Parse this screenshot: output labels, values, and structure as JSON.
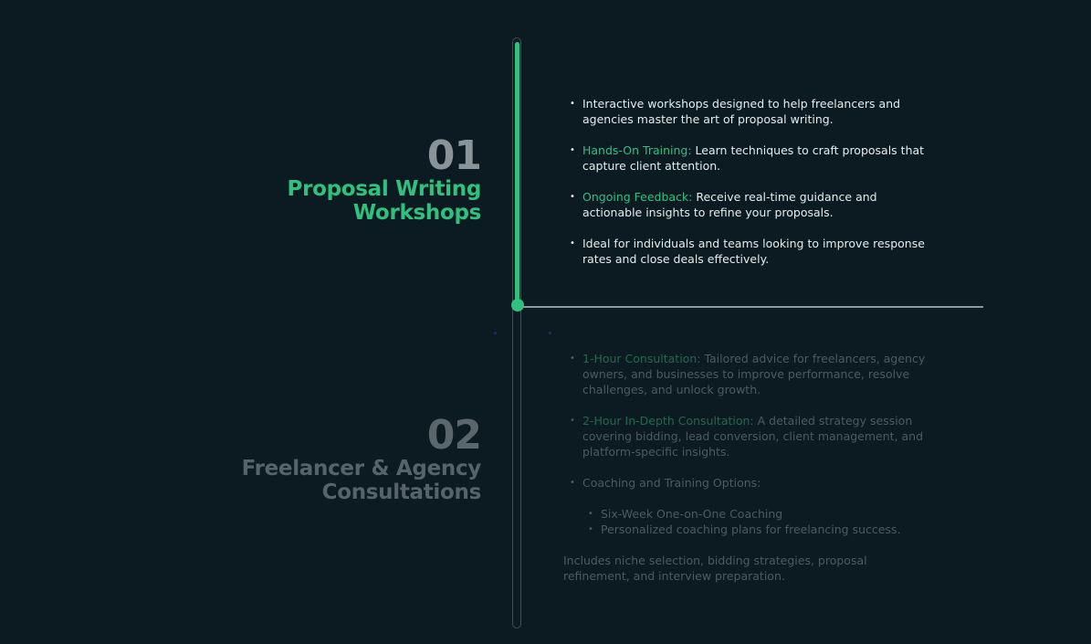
{
  "steps": [
    {
      "number": "01",
      "title_line1": "Proposal Writing",
      "title_line2": "Workshops",
      "bullets": [
        {
          "highlight": "",
          "text": "Interactive workshops designed to help freelancers and agencies master the art of proposal writing."
        },
        {
          "highlight": "Hands-On Training:",
          "text": " Learn techniques to craft proposals that capture client attention."
        },
        {
          "highlight": "Ongoing Feedback:",
          "text": " Receive real-time guidance and actionable insights to refine your proposals."
        },
        {
          "highlight": "",
          "text": "Ideal for individuals and teams looking to improve response rates and close deals effectively."
        }
      ]
    },
    {
      "number": "02",
      "title_line1": "Freelancer & Agency",
      "title_line2": "Consultations",
      "bullets": [
        {
          "highlight": "1-Hour Consultation:",
          "text": " Tailored advice for freelancers, agency owners, and  businesses to improve performance, resolve challenges, and unlock growth."
        },
        {
          "highlight": "2-Hour In-Depth Consultation:",
          "text": " A detailed strategy session covering bidding,  lead conversion, client management, and platform-specific insights."
        },
        {
          "highlight": "",
          "text": "Coaching and Training Options:"
        }
      ],
      "sub_bullets": [
        "Six-Week One-on-One Coaching",
        "Personalized coaching plans for freelancing success."
      ],
      "footnote": "Includes niche selection, bidding strategies, proposal refinement, and interview preparation."
    }
  ],
  "colors": {
    "background": "#0c1a22",
    "accent": "#2ec27e",
    "active_text": "#e6ecee",
    "inactive_text": "#4d5a60"
  }
}
